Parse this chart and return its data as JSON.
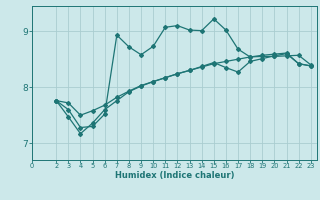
{
  "xlabel": "Humidex (Indice chaleur)",
  "bg_color": "#cce8ea",
  "grid_color": "#aacdd0",
  "line_color": "#1e7575",
  "x_ticks": [
    0,
    2,
    3,
    4,
    5,
    6,
    7,
    8,
    9,
    10,
    11,
    12,
    13,
    14,
    15,
    16,
    17,
    18,
    19,
    20,
    21,
    22,
    23
  ],
  "xlim": [
    0,
    23.5
  ],
  "ylim": [
    6.7,
    9.45
  ],
  "y_ticks": [
    7,
    8,
    9
  ],
  "curve1_x": [
    2,
    3,
    4,
    5,
    6,
    7,
    8,
    9,
    10,
    11,
    12,
    13,
    14,
    15,
    16,
    17,
    18,
    19,
    20,
    21,
    22,
    23
  ],
  "curve1_y": [
    7.76,
    7.72,
    7.5,
    7.58,
    7.68,
    7.82,
    7.93,
    8.03,
    8.1,
    8.17,
    8.24,
    8.3,
    8.36,
    8.42,
    8.46,
    8.5,
    8.54,
    8.57,
    8.59,
    8.61,
    8.42,
    8.38
  ],
  "curve2_x": [
    2,
    3,
    4,
    5,
    6,
    7,
    8,
    9,
    10,
    11,
    12,
    13,
    14,
    15,
    16,
    17,
    18,
    19,
    20,
    21,
    22,
    23
  ],
  "curve2_y": [
    7.76,
    7.6,
    7.28,
    7.3,
    7.52,
    8.93,
    8.72,
    8.58,
    8.73,
    9.07,
    9.1,
    9.02,
    9.01,
    9.22,
    9.02,
    8.68,
    8.54,
    8.55,
    8.55,
    8.56,
    8.57,
    8.4
  ],
  "curve3_x": [
    2,
    3,
    4,
    5,
    6,
    7,
    8,
    9,
    10,
    11,
    12,
    13,
    14,
    15,
    16,
    17,
    18,
    19,
    20,
    21,
    22,
    23
  ],
  "curve3_y": [
    7.76,
    7.47,
    7.17,
    7.36,
    7.6,
    7.76,
    7.92,
    8.02,
    8.1,
    8.17,
    8.24,
    8.3,
    8.37,
    8.44,
    8.35,
    8.27,
    8.46,
    8.51,
    8.56,
    8.6,
    8.42,
    8.38
  ]
}
